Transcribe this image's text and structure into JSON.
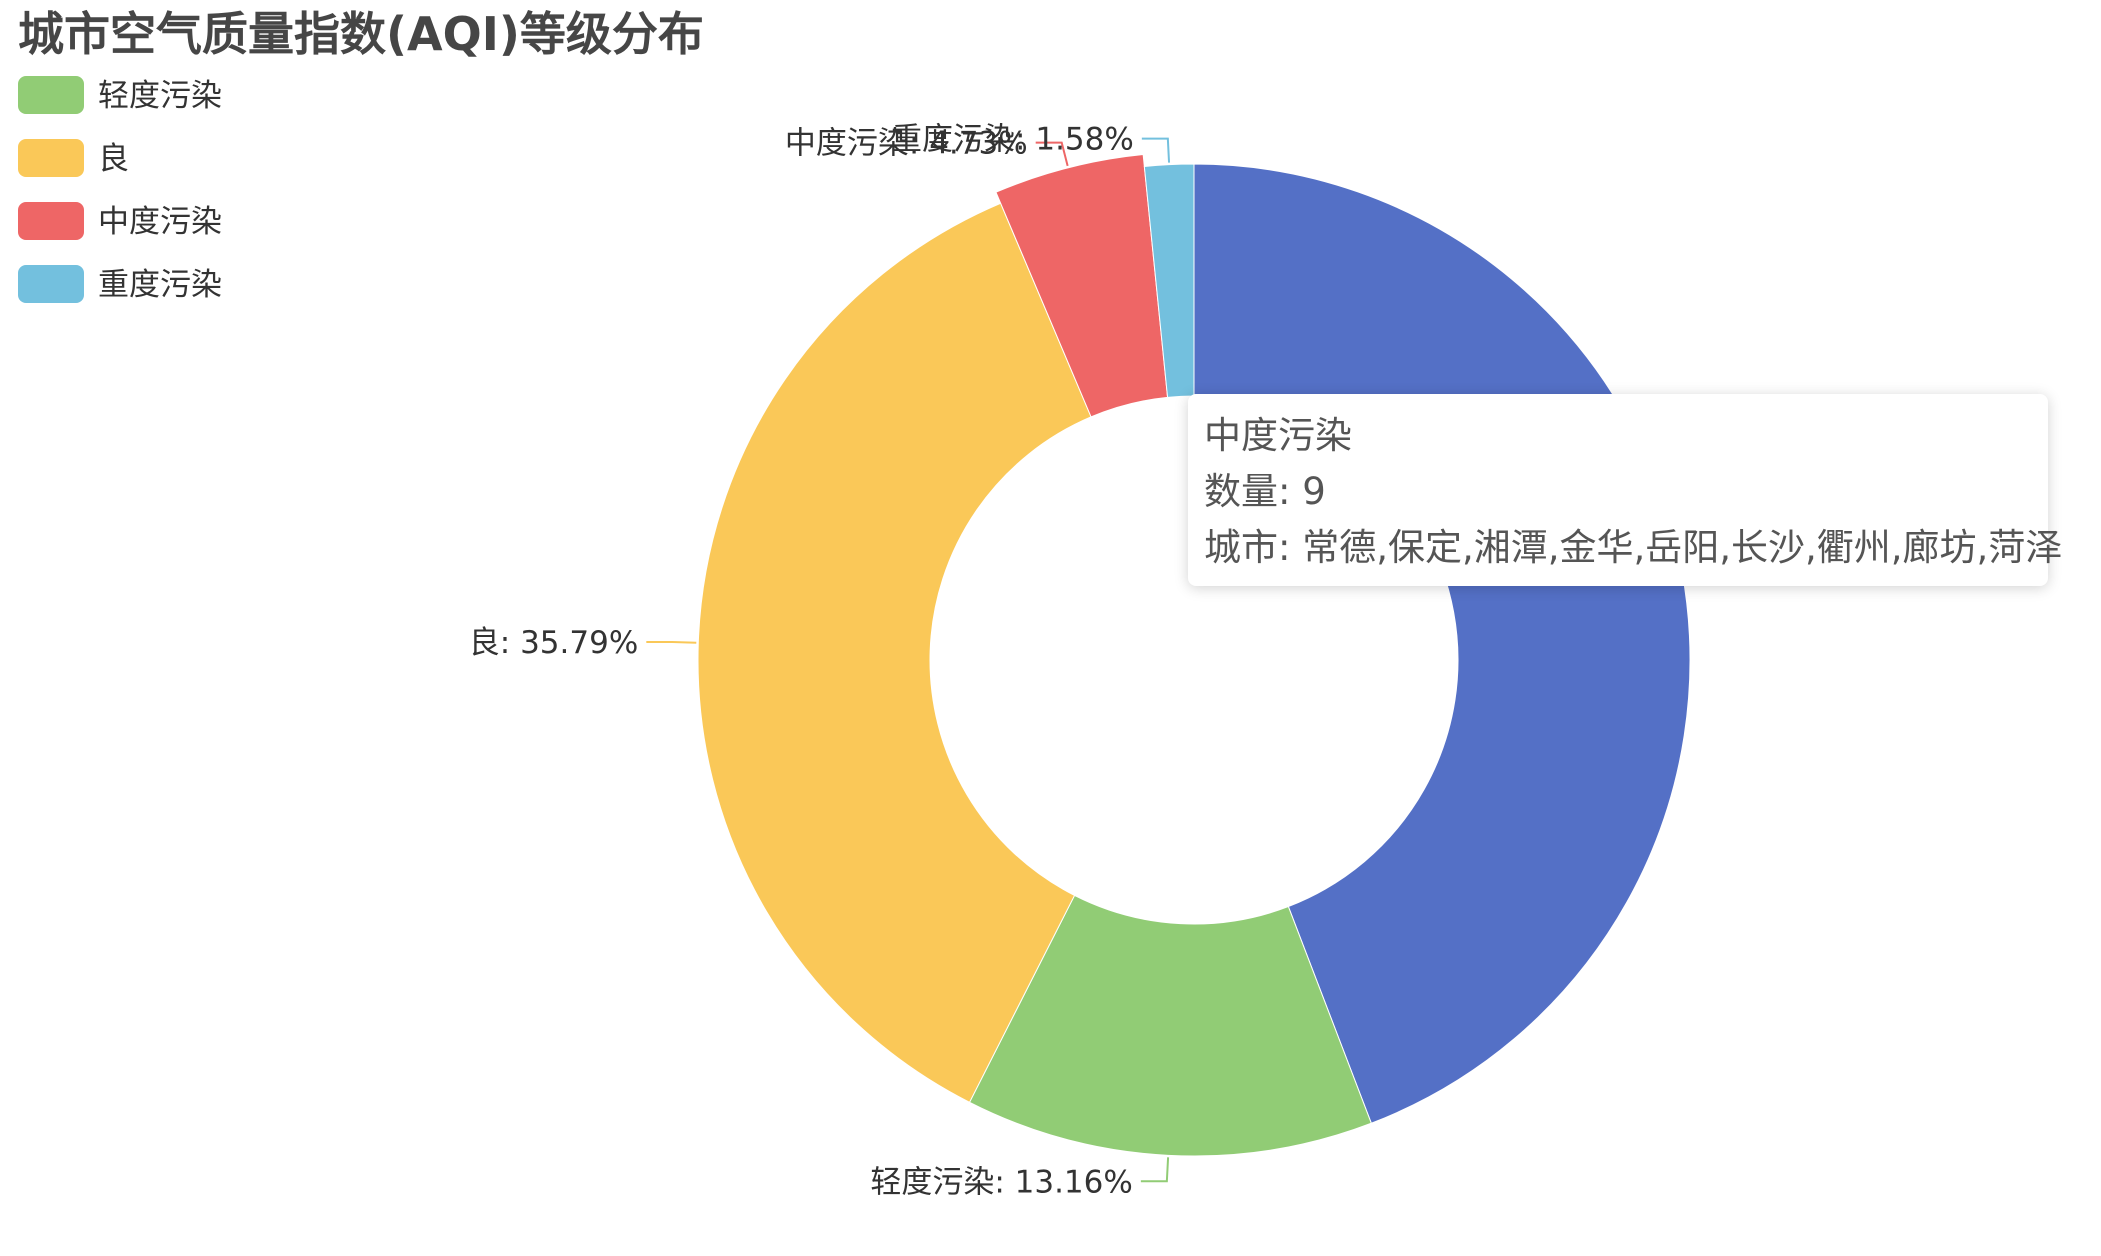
{
  "chart_data": {
    "type": "pie",
    "title": "城市空气质量指数(AQI)等级分布",
    "legend": [
      "轻度污染",
      "良",
      "中度污染",
      "重度污染"
    ],
    "legend_position": "top-left",
    "slices": [
      {
        "name": "",
        "percent": 43.74,
        "color": "#5470c6"
      },
      {
        "name": "轻度污染",
        "percent": 13.16,
        "color": "#91cc75",
        "label": "轻度污染: 13.16%"
      },
      {
        "name": "良",
        "percent": 35.79,
        "color": "#fac858",
        "label": "良: 35.79%"
      },
      {
        "name": "中度污染",
        "percent": 4.73,
        "color": "#ee6666",
        "label": "中度污染: 4.73%"
      },
      {
        "name": "重度污染",
        "percent": 1.58,
        "color": "#73c0de",
        "label": "重度污染: 1.58%"
      }
    ]
  },
  "tooltip": {
    "title": "中度污染",
    "count_line": "数量: 9",
    "cities_line": "城市: 常德,保定,湘潭,金华,岳阳,长沙,衢州,廊坊,菏泽"
  }
}
